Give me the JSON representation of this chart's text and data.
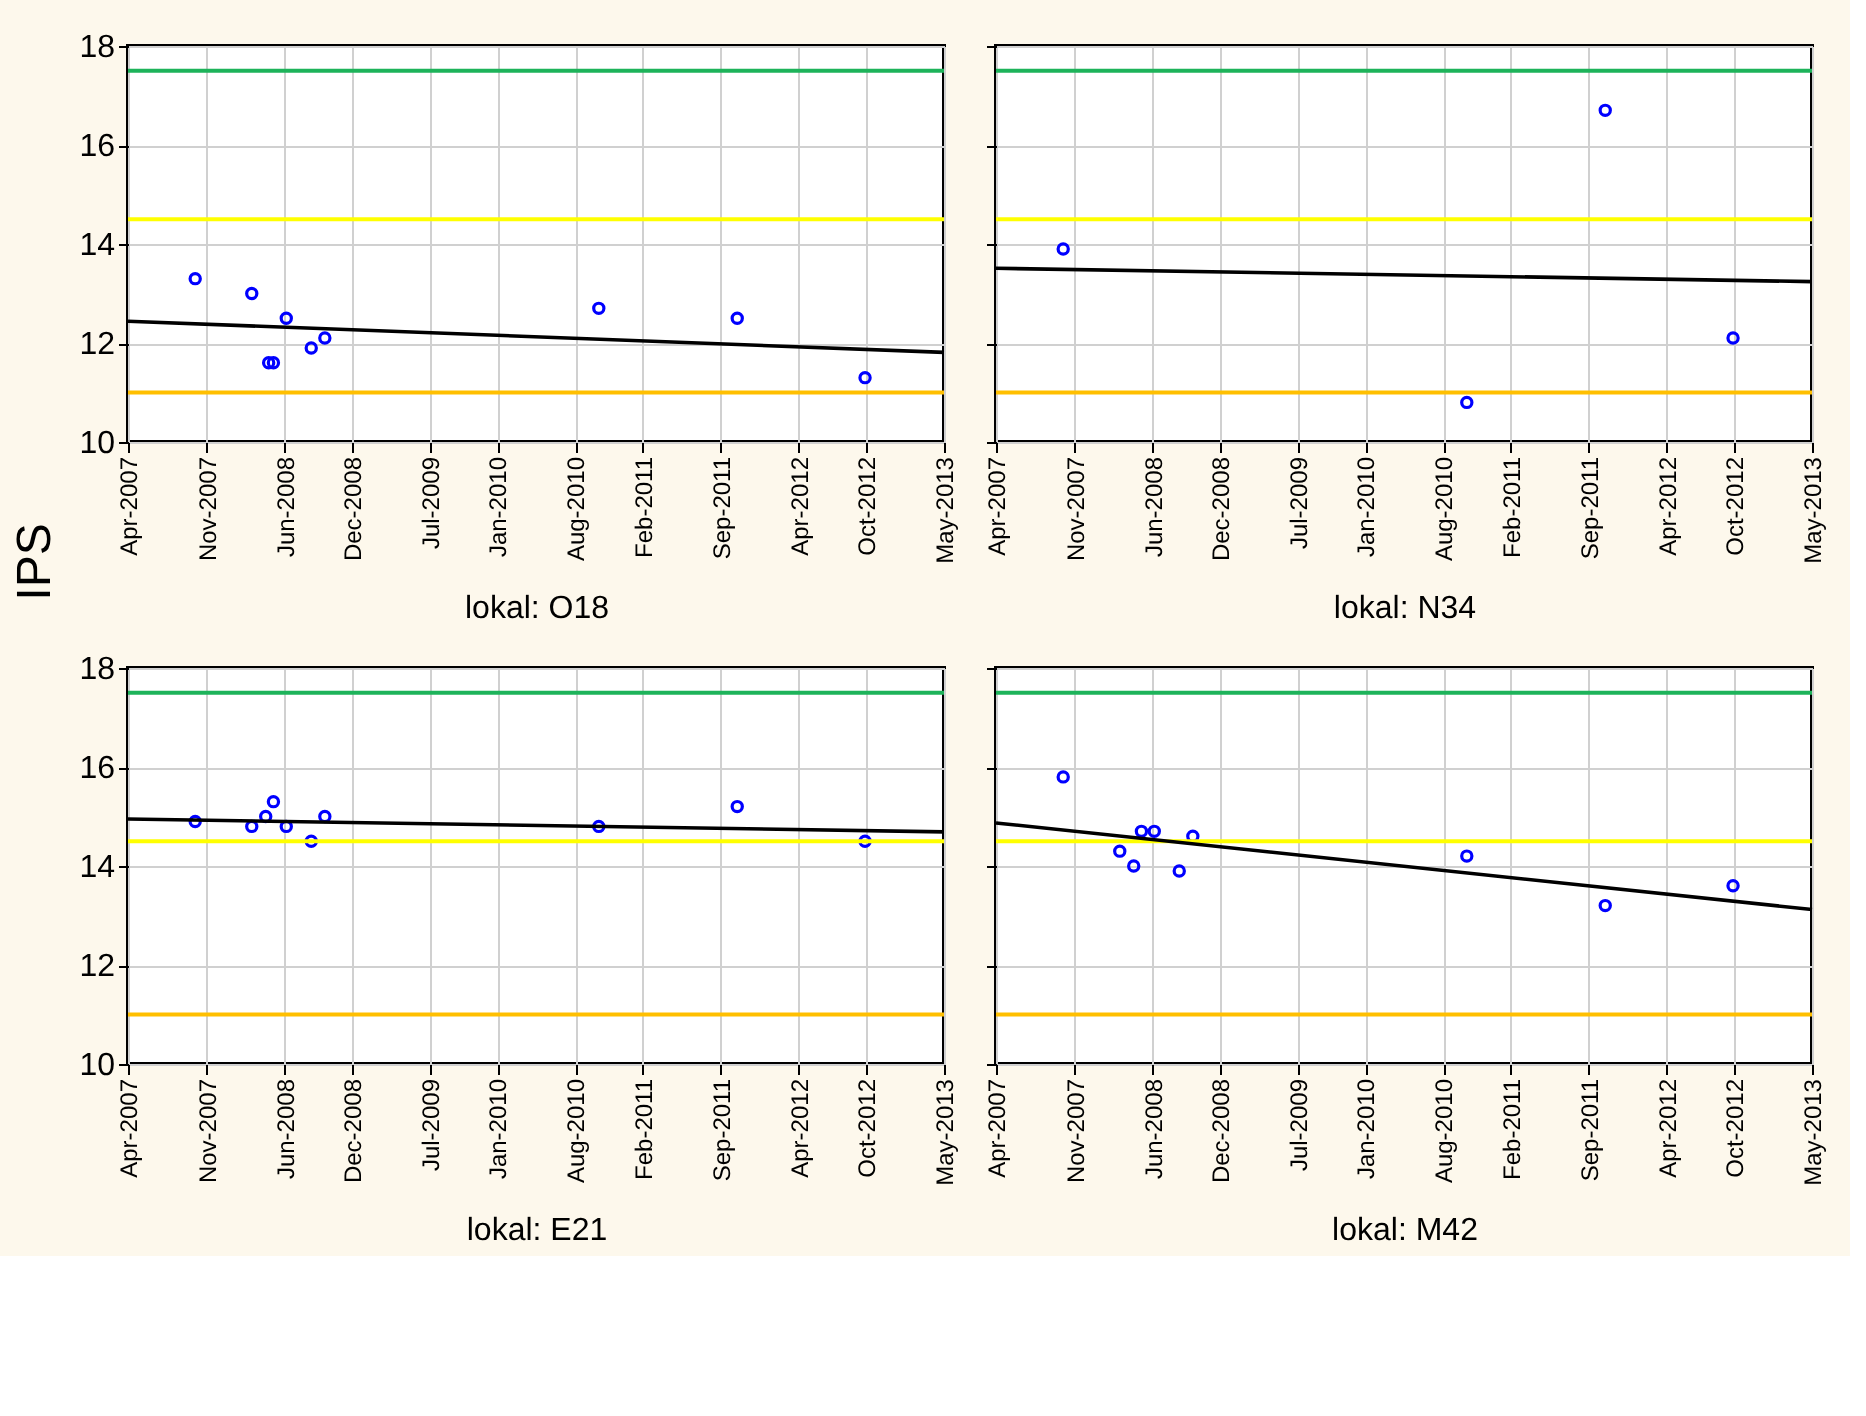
{
  "chart_data": [
    {
      "type": "scatter",
      "xlabel": "lokal: O18",
      "ylabel": "IPS",
      "xlim": [
        "2007-04-01",
        "2013-05-01"
      ],
      "ylim": [
        10,
        18
      ],
      "yticks": [
        10,
        12,
        14,
        16,
        18
      ],
      "grid": true,
      "xticks": [
        {
          "value": "2007-04-01",
          "label": "Apr-2007"
        },
        {
          "value": "2007-11-01",
          "label": "Nov-2007"
        },
        {
          "value": "2008-06-01",
          "label": "Jun-2008"
        },
        {
          "value": "2008-12-01",
          "label": "Dec-2008"
        },
        {
          "value": "2009-07-01",
          "label": "Jul-2009"
        },
        {
          "value": "2010-01-01",
          "label": "Jan-2010"
        },
        {
          "value": "2010-08-01",
          "label": "Aug-2010"
        },
        {
          "value": "2011-02-01",
          "label": "Feb-2011"
        },
        {
          "value": "2011-09-01",
          "label": "Sep-2011"
        },
        {
          "value": "2012-04-01",
          "label": "Apr-2012"
        },
        {
          "value": "2012-10-01",
          "label": "Oct-2012"
        },
        {
          "value": "2013-05-01",
          "label": "May-2013"
        }
      ],
      "ref_lines": [
        {
          "axis": "y",
          "value": 17.5,
          "color": "#1db35a"
        },
        {
          "axis": "y",
          "value": 14.5,
          "color": "#ffff00"
        },
        {
          "axis": "y",
          "value": 11,
          "color": "#ffbf00"
        }
      ],
      "series": [
        {
          "type": "scatter",
          "marker": "circle",
          "color": "#0000ff",
          "x": [
            "2007-10-01",
            "2008-03-03",
            "2008-04-18",
            "2008-05-01",
            "2008-06-05",
            "2008-08-12",
            "2008-09-18",
            "2010-10-04",
            "2011-10-16",
            "2012-09-28"
          ],
          "values": [
            13.3,
            13.0,
            11.6,
            11.6,
            12.5,
            11.9,
            12.1,
            12.7,
            12.5,
            11.3
          ]
        },
        {
          "type": "line",
          "line_style": "solid",
          "color": "#000000",
          "x": [
            "2007-04-01",
            "2013-05-01"
          ],
          "values": [
            12.44,
            11.81
          ]
        }
      ]
    },
    {
      "type": "scatter",
      "xlabel": "lokal: N34",
      "xlim": [
        "2007-04-01",
        "2013-05-01"
      ],
      "ylim": [
        10,
        18
      ],
      "yticks": [
        10,
        12,
        14,
        16,
        18
      ],
      "grid": true,
      "tick_labels": "x",
      "xticks": [
        {
          "value": "2007-04-01",
          "label": "Apr-2007"
        },
        {
          "value": "2007-11-01",
          "label": "Nov-2007"
        },
        {
          "value": "2008-06-01",
          "label": "Jun-2008"
        },
        {
          "value": "2008-12-01",
          "label": "Dec-2008"
        },
        {
          "value": "2009-07-01",
          "label": "Jul-2009"
        },
        {
          "value": "2010-01-01",
          "label": "Jan-2010"
        },
        {
          "value": "2010-08-01",
          "label": "Aug-2010"
        },
        {
          "value": "2011-02-01",
          "label": "Feb-2011"
        },
        {
          "value": "2011-09-01",
          "label": "Sep-2011"
        },
        {
          "value": "2012-04-01",
          "label": "Apr-2012"
        },
        {
          "value": "2012-10-01",
          "label": "Oct-2012"
        },
        {
          "value": "2013-05-01",
          "label": "May-2013"
        }
      ],
      "ref_lines": [
        {
          "axis": "y",
          "value": 17.5,
          "color": "#1db35a"
        },
        {
          "axis": "y",
          "value": 14.5,
          "color": "#ffff00"
        },
        {
          "axis": "y",
          "value": 11,
          "color": "#ffbf00"
        }
      ],
      "series": [
        {
          "type": "scatter",
          "marker": "circle",
          "color": "#0000ff",
          "x": [
            "2007-10-01",
            "2010-10-04",
            "2011-10-16",
            "2012-09-28"
          ],
          "values": [
            13.9,
            10.8,
            16.7,
            12.1
          ]
        },
        {
          "type": "line",
          "line_style": "solid",
          "color": "#000000",
          "x": [
            "2007-04-01",
            "2013-05-01"
          ],
          "values": [
            13.51,
            13.24
          ]
        }
      ]
    },
    {
      "type": "scatter",
      "xlabel": "lokal: E21",
      "xlim": [
        "2007-04-01",
        "2013-05-01"
      ],
      "ylim": [
        10,
        18
      ],
      "yticks": [
        10,
        12,
        14,
        16,
        18
      ],
      "grid": true,
      "xticks": [
        {
          "value": "2007-04-01",
          "label": "Apr-2007"
        },
        {
          "value": "2007-11-01",
          "label": "Nov-2007"
        },
        {
          "value": "2008-06-01",
          "label": "Jun-2008"
        },
        {
          "value": "2008-12-01",
          "label": "Dec-2008"
        },
        {
          "value": "2009-07-01",
          "label": "Jul-2009"
        },
        {
          "value": "2010-01-01",
          "label": "Jan-2010"
        },
        {
          "value": "2010-08-01",
          "label": "Aug-2010"
        },
        {
          "value": "2011-02-01",
          "label": "Feb-2011"
        },
        {
          "value": "2011-09-01",
          "label": "Sep-2011"
        },
        {
          "value": "2012-04-01",
          "label": "Apr-2012"
        },
        {
          "value": "2012-10-01",
          "label": "Oct-2012"
        },
        {
          "value": "2013-05-01",
          "label": "May-2013"
        }
      ],
      "ref_lines": [
        {
          "axis": "y",
          "value": 17.5,
          "color": "#1db35a"
        },
        {
          "axis": "y",
          "value": 14.5,
          "color": "#ffff00"
        },
        {
          "axis": "y",
          "value": 11,
          "color": "#ffbf00"
        }
      ],
      "series": [
        {
          "type": "scatter",
          "marker": "circle",
          "color": "#0000ff",
          "x": [
            "2007-10-01",
            "2008-03-03",
            "2008-04-10",
            "2008-05-01",
            "2008-06-05",
            "2008-08-12",
            "2008-09-18",
            "2010-10-04",
            "2011-10-16",
            "2012-09-28"
          ],
          "values": [
            14.9,
            14.8,
            15.0,
            15.3,
            14.8,
            14.5,
            15.0,
            14.8,
            15.2,
            14.5
          ]
        },
        {
          "type": "line",
          "line_style": "solid",
          "color": "#000000",
          "x": [
            "2007-04-01",
            "2013-05-01"
          ],
          "values": [
            14.95,
            14.69
          ]
        }
      ]
    },
    {
      "type": "scatter",
      "xlabel": "lokal: M42",
      "xlim": [
        "2007-04-01",
        "2013-05-01"
      ],
      "ylim": [
        10,
        18
      ],
      "yticks": [
        10,
        12,
        14,
        16,
        18
      ],
      "grid": true,
      "tick_labels": "x",
      "xticks": [
        {
          "value": "2007-04-01",
          "label": "Apr-2007"
        },
        {
          "value": "2007-11-01",
          "label": "Nov-2007"
        },
        {
          "value": "2008-06-01",
          "label": "Jun-2008"
        },
        {
          "value": "2008-12-01",
          "label": "Dec-2008"
        },
        {
          "value": "2009-07-01",
          "label": "Jul-2009"
        },
        {
          "value": "2010-01-01",
          "label": "Jan-2010"
        },
        {
          "value": "2010-08-01",
          "label": "Aug-2010"
        },
        {
          "value": "2011-02-01",
          "label": "Feb-2011"
        },
        {
          "value": "2011-09-01",
          "label": "Sep-2011"
        },
        {
          "value": "2012-04-01",
          "label": "Apr-2012"
        },
        {
          "value": "2012-10-01",
          "label": "Oct-2012"
        },
        {
          "value": "2013-05-01",
          "label": "May-2013"
        }
      ],
      "ref_lines": [
        {
          "axis": "y",
          "value": 17.5,
          "color": "#1db35a"
        },
        {
          "axis": "y",
          "value": 14.5,
          "color": "#ffff00"
        },
        {
          "axis": "y",
          "value": 11,
          "color": "#ffbf00"
        }
      ],
      "series": [
        {
          "type": "scatter",
          "marker": "circle",
          "color": "#0000ff",
          "x": [
            "2007-10-01",
            "2008-03-03",
            "2008-04-10",
            "2008-05-01",
            "2008-06-05",
            "2008-08-12",
            "2008-09-18",
            "2010-10-04",
            "2011-10-16",
            "2012-09-28"
          ],
          "values": [
            15.8,
            14.3,
            14.0,
            14.7,
            14.7,
            13.9,
            14.6,
            14.2,
            13.2,
            13.6
          ]
        },
        {
          "type": "line",
          "line_style": "solid",
          "color": "#000000",
          "x": [
            "2007-04-01",
            "2013-05-01"
          ],
          "values": [
            14.87,
            13.12
          ]
        }
      ]
    }
  ]
}
